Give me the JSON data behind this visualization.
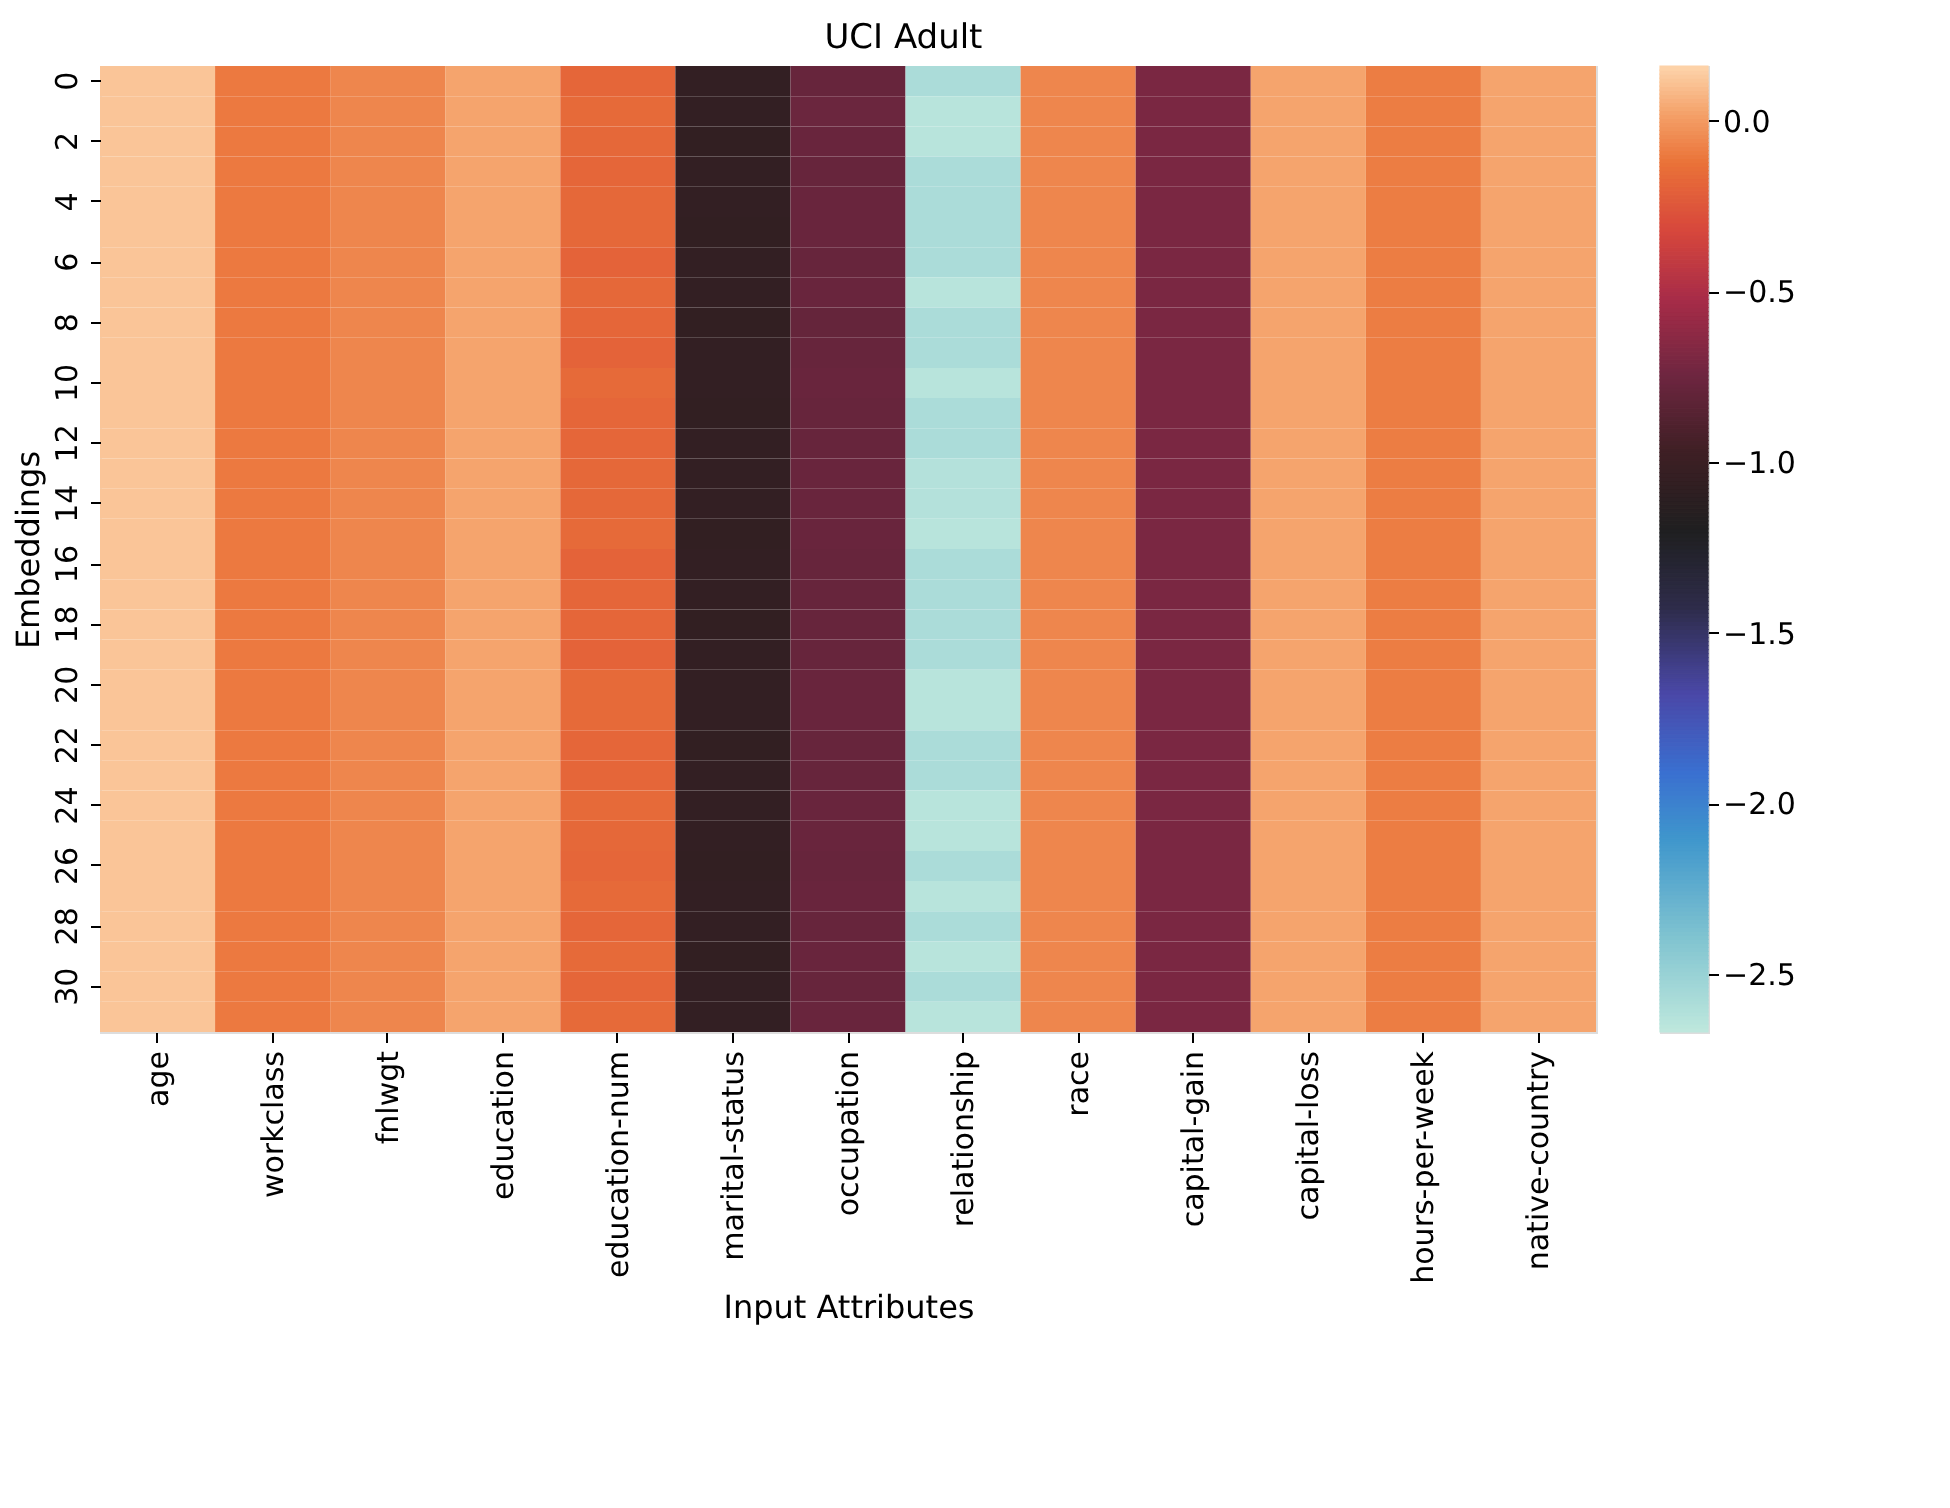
{
  "chart_data": {
    "type": "heatmap",
    "title": "UCI Adult",
    "xlabel": "Input Attributes",
    "ylabel": "Embeddings",
    "categories": [
      "age",
      "workclass",
      "fnlwgt",
      "education",
      "education-num",
      "marital-status",
      "occupation",
      "relationship",
      "race",
      "capital-gain",
      "capital-loss",
      "hours-per-week",
      "native-country"
    ],
    "y_categories": [
      "0",
      null,
      "2",
      null,
      "4",
      null,
      "6",
      null,
      "8",
      null,
      "10",
      null,
      "12",
      null,
      "14",
      null,
      "16",
      null,
      "18",
      null,
      "20",
      null,
      "22",
      null,
      "24",
      null,
      "26",
      null,
      "28",
      null,
      "30",
      null
    ],
    "cells": [
      [
        0.12,
        -0.1,
        -0.06,
        0.03,
        -0.18,
        -1.05,
        -0.78,
        -2.58,
        -0.06,
        -0.7,
        0.03,
        -0.09,
        0.03
      ],
      [
        0.12,
        -0.1,
        -0.06,
        0.03,
        -0.16,
        -1.05,
        -0.76,
        -2.64,
        -0.06,
        -0.7,
        0.03,
        -0.09,
        0.03
      ],
      [
        0.12,
        -0.1,
        -0.06,
        0.03,
        -0.17,
        -1.06,
        -0.77,
        -2.64,
        -0.06,
        -0.7,
        0.03,
        -0.09,
        0.03
      ],
      [
        0.12,
        -0.1,
        -0.06,
        0.03,
        -0.18,
        -1.05,
        -0.78,
        -2.58,
        -0.06,
        -0.7,
        0.03,
        -0.09,
        0.03
      ],
      [
        0.12,
        -0.1,
        -0.06,
        0.03,
        -0.17,
        -1.05,
        -0.77,
        -2.58,
        -0.06,
        -0.7,
        0.03,
        -0.09,
        0.03
      ],
      [
        0.12,
        -0.1,
        -0.06,
        0.03,
        -0.17,
        -1.06,
        -0.77,
        -2.58,
        -0.06,
        -0.7,
        0.03,
        -0.09,
        0.03
      ],
      [
        0.12,
        -0.1,
        -0.06,
        0.03,
        -0.19,
        -1.05,
        -0.78,
        -2.58,
        -0.06,
        -0.7,
        0.03,
        -0.09,
        0.03
      ],
      [
        0.12,
        -0.1,
        -0.06,
        0.03,
        -0.17,
        -1.05,
        -0.77,
        -2.64,
        -0.06,
        -0.7,
        0.03,
        -0.09,
        0.03
      ],
      [
        0.12,
        -0.1,
        -0.06,
        0.03,
        -0.18,
        -1.06,
        -0.79,
        -2.58,
        -0.06,
        -0.7,
        0.03,
        -0.09,
        0.03
      ],
      [
        0.12,
        -0.1,
        -0.06,
        0.03,
        -0.19,
        -1.05,
        -0.78,
        -2.58,
        -0.06,
        -0.7,
        0.03,
        -0.09,
        0.03
      ],
      [
        0.12,
        -0.1,
        -0.06,
        0.03,
        -0.16,
        -1.05,
        -0.77,
        -2.64,
        -0.06,
        -0.7,
        0.03,
        -0.09,
        0.03
      ],
      [
        0.12,
        -0.1,
        -0.06,
        0.03,
        -0.18,
        -1.06,
        -0.78,
        -2.58,
        -0.06,
        -0.7,
        0.03,
        -0.09,
        0.03
      ],
      [
        0.12,
        -0.1,
        -0.06,
        0.03,
        -0.18,
        -1.05,
        -0.78,
        -2.58,
        -0.06,
        -0.7,
        0.03,
        -0.09,
        0.03
      ],
      [
        0.12,
        -0.1,
        -0.06,
        0.03,
        -0.17,
        -1.05,
        -0.77,
        -2.62,
        -0.06,
        -0.7,
        0.03,
        -0.09,
        0.03
      ],
      [
        0.12,
        -0.1,
        -0.06,
        0.03,
        -0.17,
        -1.05,
        -0.77,
        -2.62,
        -0.06,
        -0.7,
        0.03,
        -0.09,
        0.03
      ],
      [
        0.12,
        -0.1,
        -0.06,
        0.03,
        -0.16,
        -1.06,
        -0.77,
        -2.64,
        -0.06,
        -0.7,
        0.03,
        -0.09,
        0.03
      ],
      [
        0.12,
        -0.1,
        -0.06,
        0.03,
        -0.19,
        -1.05,
        -0.78,
        -2.58,
        -0.06,
        -0.7,
        0.03,
        -0.09,
        0.03
      ],
      [
        0.12,
        -0.1,
        -0.06,
        0.03,
        -0.18,
        -1.05,
        -0.78,
        -2.58,
        -0.06,
        -0.7,
        0.03,
        -0.09,
        0.03
      ],
      [
        0.12,
        -0.1,
        -0.06,
        0.03,
        -0.18,
        -1.06,
        -0.78,
        -2.58,
        -0.06,
        -0.7,
        0.03,
        -0.09,
        0.03
      ],
      [
        0.12,
        -0.1,
        -0.06,
        0.03,
        -0.19,
        -1.05,
        -0.78,
        -2.58,
        -0.06,
        -0.7,
        0.03,
        -0.09,
        0.03
      ],
      [
        0.12,
        -0.1,
        -0.06,
        0.03,
        -0.16,
        -1.05,
        -0.77,
        -2.64,
        -0.06,
        -0.7,
        0.03,
        -0.09,
        0.03
      ],
      [
        0.12,
        -0.1,
        -0.06,
        0.03,
        -0.16,
        -1.05,
        -0.77,
        -2.64,
        -0.06,
        -0.7,
        0.03,
        -0.09,
        0.03
      ],
      [
        0.12,
        -0.1,
        -0.06,
        0.03,
        -0.18,
        -1.06,
        -0.78,
        -2.58,
        -0.06,
        -0.7,
        0.03,
        -0.09,
        0.03
      ],
      [
        0.12,
        -0.1,
        -0.06,
        0.03,
        -0.18,
        -1.05,
        -0.78,
        -2.58,
        -0.06,
        -0.7,
        0.03,
        -0.09,
        0.03
      ],
      [
        0.12,
        -0.1,
        -0.06,
        0.03,
        -0.16,
        -1.05,
        -0.77,
        -2.64,
        -0.06,
        -0.7,
        0.03,
        -0.09,
        0.03
      ],
      [
        0.12,
        -0.1,
        -0.06,
        0.03,
        -0.17,
        -1.05,
        -0.77,
        -2.64,
        -0.06,
        -0.7,
        0.03,
        -0.09,
        0.03
      ],
      [
        0.12,
        -0.1,
        -0.06,
        0.03,
        -0.18,
        -1.06,
        -0.78,
        -2.58,
        -0.06,
        -0.7,
        0.03,
        -0.09,
        0.03
      ],
      [
        0.12,
        -0.1,
        -0.06,
        0.03,
        -0.16,
        -1.05,
        -0.77,
        -2.64,
        -0.06,
        -0.7,
        0.03,
        -0.09,
        0.03
      ],
      [
        0.12,
        -0.1,
        -0.06,
        0.03,
        -0.18,
        -1.05,
        -0.78,
        -2.58,
        -0.06,
        -0.7,
        0.03,
        -0.09,
        0.03
      ],
      [
        0.12,
        -0.1,
        -0.06,
        0.03,
        -0.16,
        -1.06,
        -0.77,
        -2.64,
        -0.06,
        -0.7,
        0.03,
        -0.09,
        0.03
      ],
      [
        0.12,
        -0.1,
        -0.06,
        0.03,
        -0.18,
        -1.05,
        -0.78,
        -2.58,
        -0.06,
        -0.7,
        0.03,
        -0.09,
        0.03
      ],
      [
        0.12,
        -0.1,
        -0.06,
        0.03,
        -0.16,
        -1.05,
        -0.77,
        -2.64,
        -0.06,
        -0.7,
        0.03,
        -0.09,
        0.03
      ]
    ],
    "clim": [
      -2.67,
      0.16
    ],
    "cticks": [
      {
        "value": 0,
        "label": "0.0"
      },
      -0.5,
      {
        "value": -1,
        "label": "−1.0"
      },
      -1.5,
      {
        "value": -2,
        "label": "−2.0"
      },
      -2.5
    ]
  }
}
